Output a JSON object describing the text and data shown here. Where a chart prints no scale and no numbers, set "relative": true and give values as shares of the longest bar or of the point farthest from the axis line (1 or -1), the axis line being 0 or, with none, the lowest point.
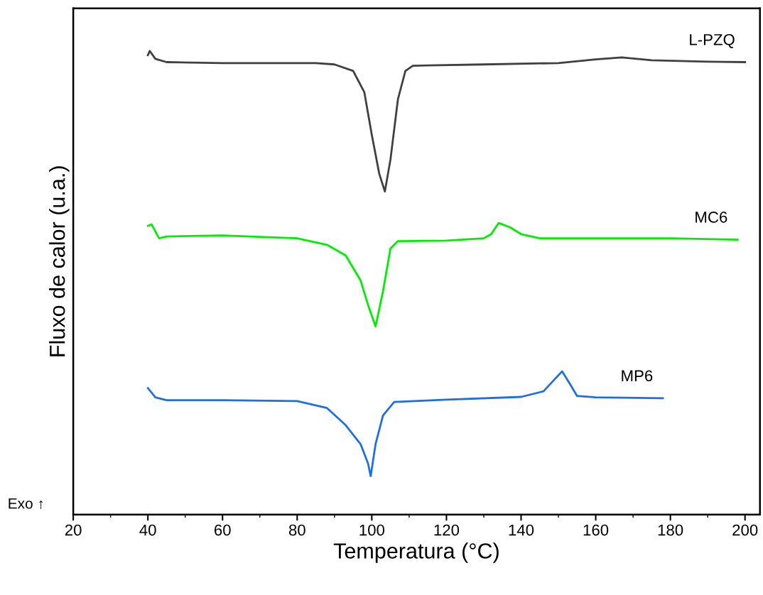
{
  "chart_data": {
    "type": "line",
    "relative": true,
    "xlabel": "Temperatura (°C)",
    "ylabel": "Fluxo de calor (u.a.)",
    "annotations": [
      "Exo ↑"
    ],
    "legend": false,
    "grid": false,
    "xlim": [
      20,
      204
    ],
    "xticks": [
      20,
      40,
      60,
      80,
      100,
      120,
      140,
      160,
      180,
      200
    ],
    "tick_labels": "x",
    "series": [
      {
        "name": "L-PZQ",
        "color": "#404040",
        "x": [
          40,
          40.5,
          42,
          45,
          60,
          80,
          85,
          90,
          95,
          98,
          100,
          102,
          103.5,
          105,
          107,
          109,
          111,
          115,
          130,
          150,
          160,
          167,
          175,
          190,
          200
        ],
        "values": [
          0.991,
          1.0,
          0.983,
          0.976,
          0.974,
          0.974,
          0.974,
          0.971,
          0.957,
          0.911,
          0.819,
          0.735,
          0.697,
          0.766,
          0.896,
          0.957,
          0.968,
          0.969,
          0.971,
          0.974,
          0.982,
          0.986,
          0.98,
          0.977,
          0.976
        ]
      },
      {
        "name": "MC6",
        "color": "#00ee00",
        "x": [
          40,
          41,
          43,
          45,
          60,
          80,
          88,
          93,
          97,
          99,
          101,
          103,
          105,
          107,
          120,
          130,
          132,
          134,
          137,
          140,
          145,
          160,
          180,
          198
        ],
        "values": [
          0.623,
          0.626,
          0.596,
          0.6,
          0.602,
          0.596,
          0.582,
          0.559,
          0.505,
          0.452,
          0.406,
          0.482,
          0.574,
          0.59,
          0.591,
          0.596,
          0.605,
          0.629,
          0.62,
          0.605,
          0.596,
          0.596,
          0.596,
          0.593
        ]
      },
      {
        "name": "MP6",
        "color": "#1f6fe0",
        "x": [
          40,
          42,
          45,
          60,
          80,
          88,
          93,
          97,
          99,
          99.7,
          101,
          103,
          106,
          120,
          140,
          146,
          149,
          151,
          153,
          155,
          160,
          178
        ],
        "values": [
          0.273,
          0.253,
          0.247,
          0.247,
          0.245,
          0.23,
          0.193,
          0.152,
          0.11,
          0.083,
          0.152,
          0.214,
          0.243,
          0.248,
          0.254,
          0.266,
          0.292,
          0.309,
          0.283,
          0.256,
          0.253,
          0.251
        ]
      }
    ]
  }
}
